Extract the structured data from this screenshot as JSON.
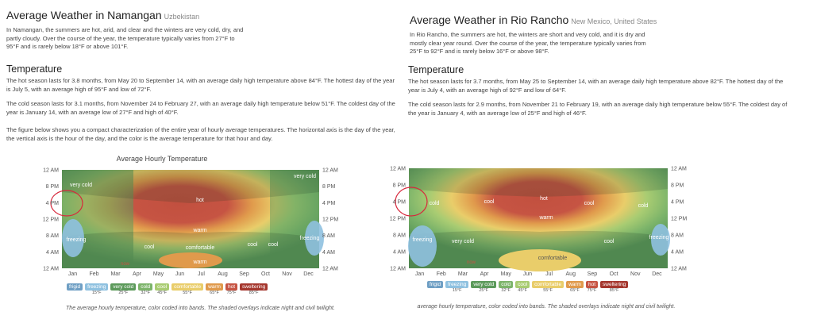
{
  "left": {
    "title": "Average Weather in Namangan",
    "subtitle": "Uzbekistan",
    "intro": "In Namangan, the summers are hot, arid, and clear and the winters are very cold, dry, and partly cloudy. Over the course of the year, the temperature typically varies from 27°F to 95°F and is rarely below 18°F or above 101°F.",
    "section_title": "Temperature",
    "hot_text": "The hot season lasts for 3.8 months, from May 20 to September 14, with an average daily high temperature above 84°F. The hottest day of the year is July 5, with an average high of 95°F and low of 72°F.",
    "cold_text": "The cold season lasts for 3.1 months, from November 24 to February 27, with an average daily high temperature below 51°F. The coldest day of the year is January 14, with an average low of 27°F and high of 40°F.",
    "figure_text": "The figure below shows you a compact characterization of the entire year of hourly average temperatures. The horizontal axis is the day of the year, the vertical axis is the hour of the day, and the color is the average temperature for that hour and day.",
    "caption": "The average hourly temperature, color coded into bands. The shaded overlays indicate night and civil twilight."
  },
  "right": {
    "title": "Average Weather in Rio Rancho",
    "subtitle": "New Mexico, United States",
    "intro": "In Rio Rancho, the summers are hot, the winters are short and very cold, and it is dry and mostly clear year round. Over the course of the year, the temperature typically varies from 25°F to 92°F and is rarely below 16°F or above 98°F.",
    "section_title": "Temperature",
    "hot_text": "The hot season lasts for 3.7 months, from May 25 to September 14, with an average daily high temperature above 82°F. The hottest day of the year is July 4, with an average high of 92°F and low of 64°F.",
    "cold_text": "The cold season lasts for 2.9 months, from November 21 to February 19, with an average daily high temperature below 55°F. The coldest day of the year is January 4, with an average low of 25°F and high of 46°F.",
    "caption": "average hourly temperature, color coded into bands. The shaded overlays indicate night and civil twilight."
  },
  "chart_data": [
    {
      "type": "heatmap",
      "title": "Average Hourly Temperature",
      "x_tick_labels": [
        "Jan",
        "Feb",
        "Mar",
        "Apr",
        "May",
        "Jun",
        "Jul",
        "Aug",
        "Sep",
        "Oct",
        "Nov",
        "Dec"
      ],
      "y_tick_labels": [
        "12 AM",
        "8 PM",
        "4 PM",
        "12 PM",
        "8 AM",
        "4 AM",
        "12 AM"
      ],
      "band_labels": [
        "very cold",
        "very cold",
        "hot",
        "warm",
        "freezing",
        "freezing",
        "cool",
        "comfortable",
        "cool",
        "cool",
        "warm"
      ],
      "today_label": "now"
    },
    {
      "type": "heatmap",
      "title": "",
      "x_tick_labels": [
        "Jan",
        "Feb",
        "Mar",
        "Apr",
        "May",
        "Jun",
        "Jul",
        "Aug",
        "Sep",
        "Oct",
        "Nov",
        "Dec"
      ],
      "y_tick_labels": [
        "12 AM",
        "8 PM",
        "4 PM",
        "12 PM",
        "8 AM",
        "4 AM",
        "12 AM"
      ],
      "band_labels": [
        "cold",
        "cool",
        "hot",
        "warm",
        "cool",
        "cold",
        "freezing",
        "very cold",
        "cool",
        "freezing",
        "comfortable"
      ],
      "today_label": "now"
    }
  ],
  "legend": {
    "bands": [
      {
        "label": "frigid",
        "color": "#6f9fc4"
      },
      {
        "label": "freezing",
        "color": "#8fc1e0"
      },
      {
        "label": "very cold",
        "color": "#5c9a5b"
      },
      {
        "label": "cold",
        "color": "#7cb46a"
      },
      {
        "label": "cool",
        "color": "#a9cc72"
      },
      {
        "label": "comfortable",
        "color": "#e9cd6a"
      },
      {
        "label": "warm",
        "color": "#e09a4c"
      },
      {
        "label": "hot",
        "color": "#c65443"
      },
      {
        "label": "sweltering",
        "color": "#a5372e"
      }
    ],
    "temps": [
      "15°F",
      "25°F",
      "32°F",
      "45°F",
      "55°F",
      "65°F",
      "75°F",
      "85°F",
      "95°F"
    ]
  }
}
